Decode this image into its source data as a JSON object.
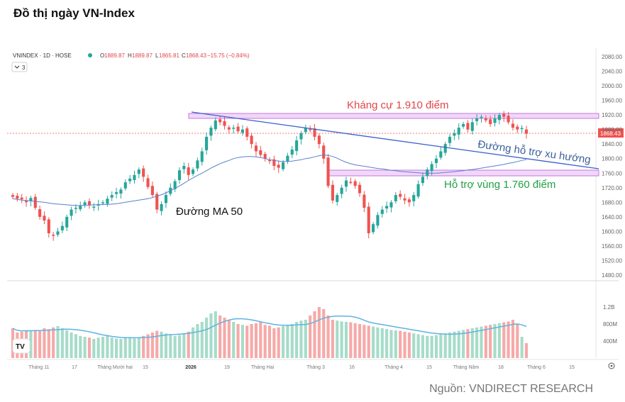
{
  "page": {
    "title": "Đồ thị ngày VN-Index",
    "source": "Nguồn: VNDIRECT RESEARCH"
  },
  "colors": {
    "up": "#26a69a",
    "down": "#ef5350",
    "ma": "#5b7fcf",
    "trend": "#3a5fcd",
    "zone": "#c874e0",
    "resistance_text": "#e0474c",
    "support_text": "#22a046"
  },
  "header": {
    "symbol": "VNINDEX · 1D · HOSE",
    "o_label": "O",
    "o": "1889.87",
    "h_label": "H",
    "h": "1889.87",
    "l_label": "L",
    "l": "1865.81",
    "c_label": "C",
    "c": "1868.43",
    "change": "−15.75 (−0.84%)",
    "collapse_count": "3"
  },
  "annotations": {
    "resistance": "Kháng cự 1.910 điểm",
    "support": "Hỗ trợ vùng 1.760 điểm",
    "trendline": "Đường hỗ trợ xu hướng",
    "ma50": "Đường MA 50"
  },
  "last_price": "1868.43",
  "chart_data": {
    "type": "candlestick",
    "price_axis": {
      "ticks": [
        "2080.00",
        "2040.00",
        "2000.00",
        "1960.00",
        "1920.00",
        "1880.00",
        "1840.00",
        "1800.00",
        "1760.00",
        "1720.00",
        "1680.00",
        "1640.00",
        "1600.00",
        "1560.00",
        "1520.00",
        "1480.00"
      ],
      "range": [
        1450,
        2100
      ]
    },
    "volume_axis": {
      "ticks": [
        "1.2B",
        "800M",
        "400M"
      ]
    },
    "x_ticks": [
      "Tháng 11",
      "17",
      "Tháng Mười hai",
      "15",
      "2026",
      "19",
      "Tháng Hai",
      "Tháng 3",
      "16",
      "Tháng 4",
      "15",
      "Tháng Năm",
      "18",
      "Tháng 6",
      "15"
    ],
    "resistance_level": 1910,
    "support_level": 1760,
    "closes": [
      1695,
      1690,
      1688,
      1680,
      1692,
      1665,
      1640,
      1630,
      1595,
      1588,
      1600,
      1615,
      1640,
      1660,
      1665,
      1670,
      1680,
      1672,
      1668,
      1675,
      1680,
      1690,
      1700,
      1708,
      1715,
      1735,
      1745,
      1755,
      1770,
      1750,
      1722,
      1700,
      1660,
      1675,
      1700,
      1720,
      1738,
      1768,
      1780,
      1755,
      1770,
      1795,
      1820,
      1860,
      1885,
      1905,
      1900,
      1890,
      1880,
      1885,
      1875,
      1880,
      1860,
      1840,
      1820,
      1810,
      1800,
      1795,
      1780,
      1775,
      1790,
      1808,
      1825,
      1850,
      1870,
      1885,
      1880,
      1860,
      1840,
      1800,
      1725,
      1685,
      1700,
      1720,
      1740,
      1735,
      1725,
      1705,
      1665,
      1595,
      1620,
      1645,
      1660,
      1670,
      1680,
      1700,
      1695,
      1685,
      1680,
      1700,
      1730,
      1750,
      1770,
      1785,
      1800,
      1820,
      1840,
      1860,
      1870,
      1885,
      1895,
      1880,
      1900,
      1910,
      1915,
      1905,
      1895,
      1910,
      1920,
      1915,
      1900,
      1885,
      1880,
      1884,
      1868.43
    ],
    "ma50": [
      1690,
      1688,
      1686,
      1685,
      1684,
      1682,
      1681,
      1680,
      1678,
      1676,
      1675,
      1674,
      1673,
      1672,
      1671,
      1671,
      1672,
      1672,
      1673,
      1673,
      1674,
      1674,
      1675,
      1676,
      1678,
      1680,
      1682,
      1684,
      1686,
      1688,
      1690,
      1693,
      1697,
      1701,
      1706,
      1712,
      1718,
      1725,
      1732,
      1740,
      1747,
      1754,
      1760,
      1767,
      1774,
      1780,
      1786,
      1791,
      1795,
      1800,
      1803,
      1805,
      1806,
      1806,
      1805,
      1803,
      1800,
      1797,
      1795,
      1793,
      1792,
      1792,
      1793,
      1795,
      1797,
      1800,
      1802,
      1805,
      1808,
      1810,
      1809,
      1806,
      1801,
      1795,
      1790,
      1786,
      1783,
      1781,
      1779,
      1777,
      1775,
      1773,
      1772,
      1770,
      1768,
      1767,
      1765,
      1764,
      1763,
      1762,
      1761,
      1760,
      1760,
      1760,
      1760,
      1761,
      1762,
      1763,
      1764,
      1766,
      1767,
      1769,
      1770,
      1772,
      1774,
      1776,
      1778,
      1780,
      1782,
      1784,
      1787,
      1789,
      1792,
      1795,
      1798
    ],
    "volume": [
      700,
      600,
      620,
      650,
      640,
      660,
      650,
      700,
      680,
      720,
      750,
      700,
      650,
      600,
      560,
      520,
      500,
      480,
      450,
      480,
      500,
      520,
      480,
      460,
      450,
      470,
      490,
      460,
      480,
      520,
      560,
      600,
      640,
      620,
      580,
      560,
      520,
      540,
      580,
      620,
      720,
      800,
      850,
      950,
      1050,
      1100,
      1000,
      950,
      900,
      850,
      800,
      780,
      760,
      800,
      820,
      850,
      780,
      760,
      700,
      720,
      750,
      760,
      800,
      850,
      880,
      900,
      1000,
      1100,
      1200,
      1150,
      1000,
      900,
      880,
      860,
      850,
      840,
      820,
      800,
      780,
      760,
      740,
      720,
      700,
      680,
      660,
      650,
      640,
      620,
      600,
      580,
      560,
      540,
      520,
      520,
      540,
      560,
      580,
      600,
      620,
      640,
      660,
      680,
      700,
      720,
      740,
      760,
      780,
      800,
      820,
      840,
      860,
      900,
      800,
      500,
      350
    ]
  }
}
